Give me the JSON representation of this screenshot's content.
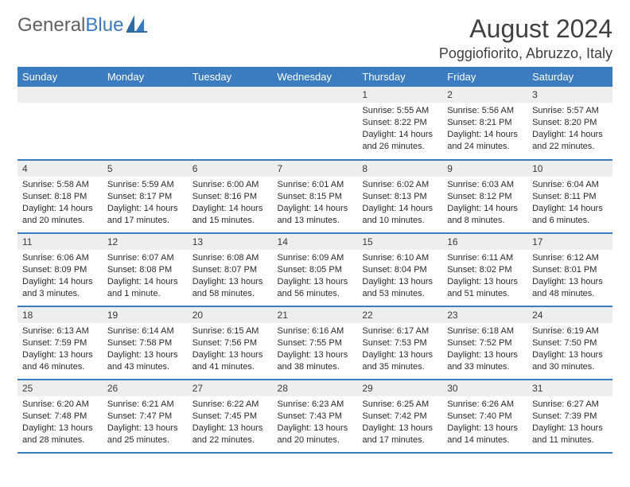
{
  "logo": {
    "brand_gray": "General",
    "brand_blue": "Blue"
  },
  "title": "August 2024",
  "location": "Poggiofiorito, Abruzzo, Italy",
  "dow": [
    "Sunday",
    "Monday",
    "Tuesday",
    "Wednesday",
    "Thursday",
    "Friday",
    "Saturday"
  ],
  "colors": {
    "header_bg": "#3b7bbf",
    "daynum_bg": "#eeeeee",
    "row_separator": "#3b7bbf"
  },
  "weeks": [
    [
      {
        "num": "",
        "sunrise": "",
        "sunset": "",
        "daylight": ""
      },
      {
        "num": "",
        "sunrise": "",
        "sunset": "",
        "daylight": ""
      },
      {
        "num": "",
        "sunrise": "",
        "sunset": "",
        "daylight": ""
      },
      {
        "num": "",
        "sunrise": "",
        "sunset": "",
        "daylight": ""
      },
      {
        "num": "1",
        "sunrise": "Sunrise: 5:55 AM",
        "sunset": "Sunset: 8:22 PM",
        "daylight": "Daylight: 14 hours and 26 minutes."
      },
      {
        "num": "2",
        "sunrise": "Sunrise: 5:56 AM",
        "sunset": "Sunset: 8:21 PM",
        "daylight": "Daylight: 14 hours and 24 minutes."
      },
      {
        "num": "3",
        "sunrise": "Sunrise: 5:57 AM",
        "sunset": "Sunset: 8:20 PM",
        "daylight": "Daylight: 14 hours and 22 minutes."
      }
    ],
    [
      {
        "num": "4",
        "sunrise": "Sunrise: 5:58 AM",
        "sunset": "Sunset: 8:18 PM",
        "daylight": "Daylight: 14 hours and 20 minutes."
      },
      {
        "num": "5",
        "sunrise": "Sunrise: 5:59 AM",
        "sunset": "Sunset: 8:17 PM",
        "daylight": "Daylight: 14 hours and 17 minutes."
      },
      {
        "num": "6",
        "sunrise": "Sunrise: 6:00 AM",
        "sunset": "Sunset: 8:16 PM",
        "daylight": "Daylight: 14 hours and 15 minutes."
      },
      {
        "num": "7",
        "sunrise": "Sunrise: 6:01 AM",
        "sunset": "Sunset: 8:15 PM",
        "daylight": "Daylight: 14 hours and 13 minutes."
      },
      {
        "num": "8",
        "sunrise": "Sunrise: 6:02 AM",
        "sunset": "Sunset: 8:13 PM",
        "daylight": "Daylight: 14 hours and 10 minutes."
      },
      {
        "num": "9",
        "sunrise": "Sunrise: 6:03 AM",
        "sunset": "Sunset: 8:12 PM",
        "daylight": "Daylight: 14 hours and 8 minutes."
      },
      {
        "num": "10",
        "sunrise": "Sunrise: 6:04 AM",
        "sunset": "Sunset: 8:11 PM",
        "daylight": "Daylight: 14 hours and 6 minutes."
      }
    ],
    [
      {
        "num": "11",
        "sunrise": "Sunrise: 6:06 AM",
        "sunset": "Sunset: 8:09 PM",
        "daylight": "Daylight: 14 hours and 3 minutes."
      },
      {
        "num": "12",
        "sunrise": "Sunrise: 6:07 AM",
        "sunset": "Sunset: 8:08 PM",
        "daylight": "Daylight: 14 hours and 1 minute."
      },
      {
        "num": "13",
        "sunrise": "Sunrise: 6:08 AM",
        "sunset": "Sunset: 8:07 PM",
        "daylight": "Daylight: 13 hours and 58 minutes."
      },
      {
        "num": "14",
        "sunrise": "Sunrise: 6:09 AM",
        "sunset": "Sunset: 8:05 PM",
        "daylight": "Daylight: 13 hours and 56 minutes."
      },
      {
        "num": "15",
        "sunrise": "Sunrise: 6:10 AM",
        "sunset": "Sunset: 8:04 PM",
        "daylight": "Daylight: 13 hours and 53 minutes."
      },
      {
        "num": "16",
        "sunrise": "Sunrise: 6:11 AM",
        "sunset": "Sunset: 8:02 PM",
        "daylight": "Daylight: 13 hours and 51 minutes."
      },
      {
        "num": "17",
        "sunrise": "Sunrise: 6:12 AM",
        "sunset": "Sunset: 8:01 PM",
        "daylight": "Daylight: 13 hours and 48 minutes."
      }
    ],
    [
      {
        "num": "18",
        "sunrise": "Sunrise: 6:13 AM",
        "sunset": "Sunset: 7:59 PM",
        "daylight": "Daylight: 13 hours and 46 minutes."
      },
      {
        "num": "19",
        "sunrise": "Sunrise: 6:14 AM",
        "sunset": "Sunset: 7:58 PM",
        "daylight": "Daylight: 13 hours and 43 minutes."
      },
      {
        "num": "20",
        "sunrise": "Sunrise: 6:15 AM",
        "sunset": "Sunset: 7:56 PM",
        "daylight": "Daylight: 13 hours and 41 minutes."
      },
      {
        "num": "21",
        "sunrise": "Sunrise: 6:16 AM",
        "sunset": "Sunset: 7:55 PM",
        "daylight": "Daylight: 13 hours and 38 minutes."
      },
      {
        "num": "22",
        "sunrise": "Sunrise: 6:17 AM",
        "sunset": "Sunset: 7:53 PM",
        "daylight": "Daylight: 13 hours and 35 minutes."
      },
      {
        "num": "23",
        "sunrise": "Sunrise: 6:18 AM",
        "sunset": "Sunset: 7:52 PM",
        "daylight": "Daylight: 13 hours and 33 minutes."
      },
      {
        "num": "24",
        "sunrise": "Sunrise: 6:19 AM",
        "sunset": "Sunset: 7:50 PM",
        "daylight": "Daylight: 13 hours and 30 minutes."
      }
    ],
    [
      {
        "num": "25",
        "sunrise": "Sunrise: 6:20 AM",
        "sunset": "Sunset: 7:48 PM",
        "daylight": "Daylight: 13 hours and 28 minutes."
      },
      {
        "num": "26",
        "sunrise": "Sunrise: 6:21 AM",
        "sunset": "Sunset: 7:47 PM",
        "daylight": "Daylight: 13 hours and 25 minutes."
      },
      {
        "num": "27",
        "sunrise": "Sunrise: 6:22 AM",
        "sunset": "Sunset: 7:45 PM",
        "daylight": "Daylight: 13 hours and 22 minutes."
      },
      {
        "num": "28",
        "sunrise": "Sunrise: 6:23 AM",
        "sunset": "Sunset: 7:43 PM",
        "daylight": "Daylight: 13 hours and 20 minutes."
      },
      {
        "num": "29",
        "sunrise": "Sunrise: 6:25 AM",
        "sunset": "Sunset: 7:42 PM",
        "daylight": "Daylight: 13 hours and 17 minutes."
      },
      {
        "num": "30",
        "sunrise": "Sunrise: 6:26 AM",
        "sunset": "Sunset: 7:40 PM",
        "daylight": "Daylight: 13 hours and 14 minutes."
      },
      {
        "num": "31",
        "sunrise": "Sunrise: 6:27 AM",
        "sunset": "Sunset: 7:39 PM",
        "daylight": "Daylight: 13 hours and 11 minutes."
      }
    ]
  ]
}
